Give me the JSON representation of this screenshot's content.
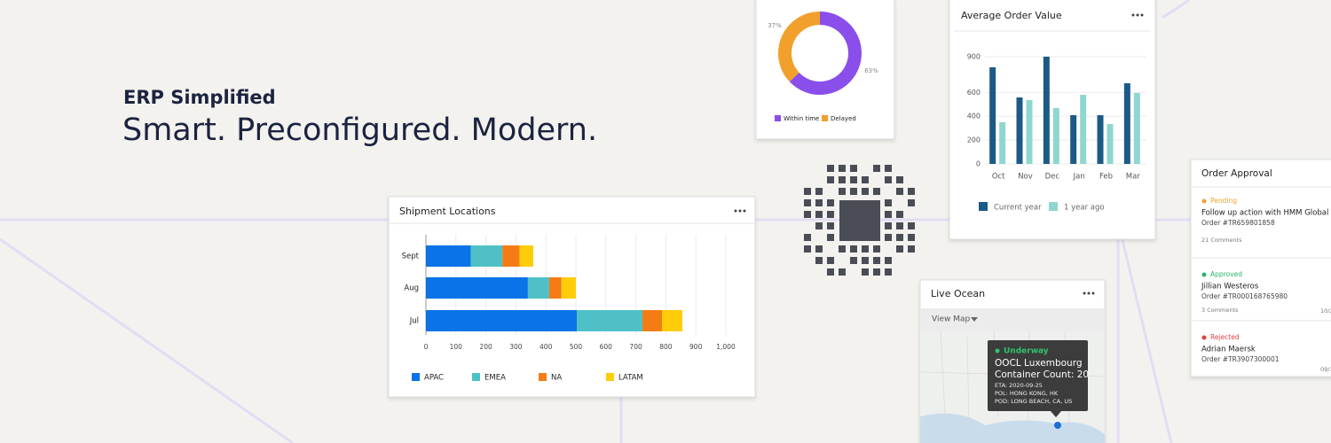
{
  "hero": {
    "title": "ERP Simplified",
    "subtitle": "Smart. Preconfigured. Modern."
  },
  "shipment_card": {
    "title": "Shipment Locations",
    "chart_data": {
      "type": "bar",
      "orientation": "horizontal",
      "stacked": true,
      "categories": [
        "Sept",
        "Aug",
        "Jul"
      ],
      "series": [
        {
          "name": "APAC",
          "color": "#0a73e8",
          "values": [
            150,
            340,
            503
          ]
        },
        {
          "name": "EMEA",
          "color": "#4fc1c6",
          "values": [
            105,
            71,
            219
          ]
        },
        {
          "name": "NA",
          "color": "#f57c14",
          "values": [
            57,
            41,
            65
          ]
        },
        {
          "name": "LATAM",
          "color": "#ffcc0a",
          "values": [
            46,
            48,
            68
          ]
        }
      ],
      "xlim": [
        0,
        1000
      ],
      "xticks": [
        0,
        100,
        200,
        300,
        400,
        500,
        600,
        700,
        800,
        900,
        {
          "value": 1000,
          "label": "1,000"
        }
      ],
      "grid": true,
      "legend": "bottom"
    }
  },
  "donut_card": {
    "chart_data": {
      "type": "donut",
      "categories": [
        "Within time",
        "Delayed"
      ],
      "values": [
        63,
        37
      ],
      "value_labels": [
        "63%",
        "37%"
      ],
      "colors": [
        "#8a4fea",
        "#f2a02c"
      ],
      "legend": "bottom"
    }
  },
  "aov_card": {
    "title": "Average Order Value",
    "chart_data": {
      "type": "bar",
      "categories": [
        "Oct",
        "Nov",
        "Dec",
        "Jan",
        "Feb",
        "Mar"
      ],
      "series": [
        {
          "name": "Current year",
          "color": "#1b5a86",
          "values": [
            811,
            558,
            900,
            409,
            409,
            677
          ]
        },
        {
          "name": "1 year ago",
          "color": "#8fd6cf",
          "values": [
            350,
            536,
            469,
            580,
            335,
            595
          ]
        }
      ],
      "ylim": [
        0,
        900
      ],
      "yticks": [
        0,
        200,
        400,
        600,
        900
      ],
      "grid": true,
      "legend": "bottom"
    }
  },
  "live_ocean": {
    "title": "Live Ocean",
    "view_map": "View Map",
    "tooltip": {
      "status": "Underway",
      "vessel": "OOCL Luxembourg",
      "containers": "Container Count: 20",
      "eta": "ETA: 2020-09-25",
      "pol": "POL: HONG KONG, HK",
      "pod": "POD: LONG BEACH, CA, US"
    }
  },
  "order_approval": {
    "title": "Order Approval",
    "items": [
      {
        "status": "Pending",
        "name": "Follow up action with HMM Global",
        "order": "Order #TR659801858",
        "comments": "21 Comments"
      },
      {
        "status": "Approved",
        "name": "Jillian Westeros",
        "order": "Order #TR000168765980",
        "comments": "3 Comments",
        "date": "10/2"
      },
      {
        "status": "Rejected",
        "name": "Adrian Maersk",
        "order": "Order #TR3907300001",
        "date": "09/3"
      }
    ]
  }
}
